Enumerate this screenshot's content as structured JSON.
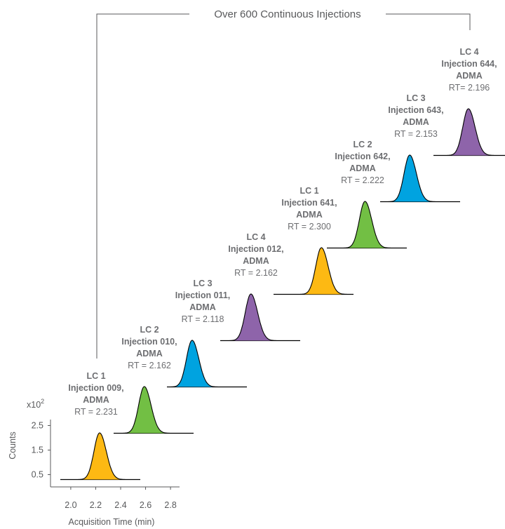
{
  "chart_data": {
    "type": "line",
    "title": "Over 600 Continuous Injections",
    "xlabel": "Acquisition Time (min)",
    "ylabel": "Counts",
    "y_scale_label": "x10",
    "y_scale_exponent": "2",
    "xlim": [
      1.95,
      2.85
    ],
    "ylim": [
      0,
      2.8
    ],
    "x_ticks": [
      "2.0",
      "2.2",
      "2.4",
      "2.6",
      "2.8"
    ],
    "y_ticks": [
      "0.5",
      "1.5",
      "2.5"
    ],
    "peaks": [
      {
        "lc": "LC 1",
        "injection": "Injection 009,",
        "analyte": "ADMA",
        "rt_label": "RT = 2.231",
        "rt": 2.231,
        "height": 2.2,
        "color": "#FDB913"
      },
      {
        "lc": "LC 2",
        "injection": "Injection 010,",
        "analyte": "ADMA",
        "rt_label": "RT =  2.162",
        "rt": 2.162,
        "height": 2.2,
        "color": "#72BF44"
      },
      {
        "lc": "LC 3",
        "injection": "Injection 011,",
        "analyte": "ADMA",
        "rt_label": "RT =  2.118",
        "rt": 2.118,
        "height": 2.2,
        "color": "#00A3E0"
      },
      {
        "lc": "LC 4",
        "injection": "Injection 012,",
        "analyte": "ADMA",
        "rt_label": "RT = 2.162",
        "rt": 2.162,
        "height": 2.2,
        "color": "#8E64AA"
      },
      {
        "lc": "LC 1",
        "injection": "Injection 641,",
        "analyte": "ADMA",
        "rt_label": "RT = 2.300",
        "rt": 2.3,
        "height": 2.2,
        "color": "#FDB913"
      },
      {
        "lc": "LC 2",
        "injection": "Injection 642,",
        "analyte": "ADMA",
        "rt_label": "RT = 2.222",
        "rt": 2.222,
        "height": 2.2,
        "color": "#72BF44"
      },
      {
        "lc": "LC 3",
        "injection": "Injection 643,",
        "analyte": "ADMA",
        "rt_label": "RT =  2.153",
        "rt": 2.153,
        "height": 2.2,
        "color": "#00A3E0"
      },
      {
        "lc": "LC 4",
        "injection": "Injection 644,",
        "analyte": "ADMA",
        "rt_label": "RT= 2.196",
        "rt": 2.196,
        "height": 2.2,
        "color": "#8E64AA"
      }
    ]
  }
}
